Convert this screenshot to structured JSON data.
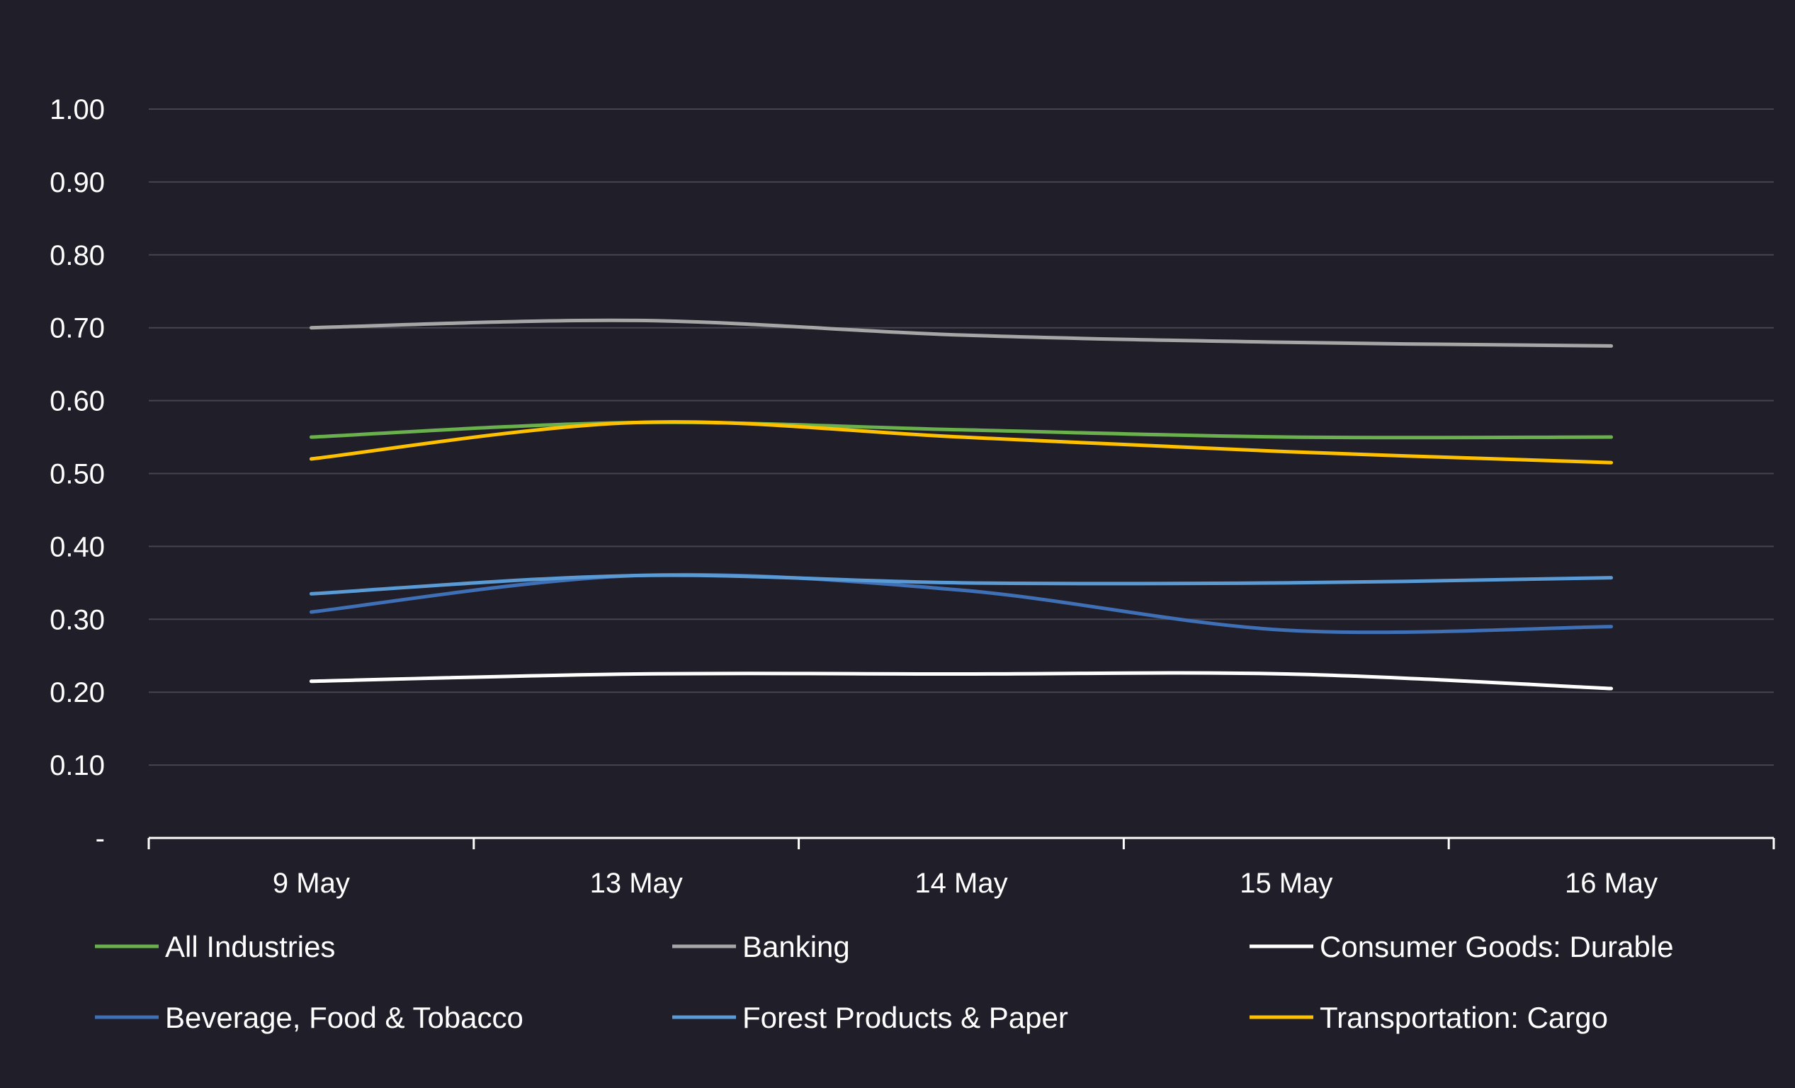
{
  "chart_data": {
    "type": "line",
    "title": "",
    "xlabel": "",
    "ylabel": "",
    "categories": [
      "9 May",
      "13 May",
      "14 May",
      "15 May",
      "16 May"
    ],
    "ylim": [
      0,
      1.0
    ],
    "y_ticks": [
      {
        "value": 0.0,
        "label": "-"
      },
      {
        "value": 0.1,
        "label": "0.10"
      },
      {
        "value": 0.2,
        "label": "0.20"
      },
      {
        "value": 0.3,
        "label": "0.30"
      },
      {
        "value": 0.4,
        "label": "0.40"
      },
      {
        "value": 0.5,
        "label": "0.50"
      },
      {
        "value": 0.6,
        "label": "0.60"
      },
      {
        "value": 0.7,
        "label": "0.70"
      },
      {
        "value": 0.8,
        "label": "0.80"
      },
      {
        "value": 0.9,
        "label": "0.90"
      },
      {
        "value": 1.0,
        "label": "1.00"
      }
    ],
    "grid": true,
    "legend_position": "bottom",
    "series": [
      {
        "name": "All Industries",
        "color": "#6ab04c",
        "values": [
          0.55,
          0.57,
          0.56,
          0.55,
          0.55
        ]
      },
      {
        "name": "Banking",
        "color": "#a6a6a6",
        "values": [
          0.7,
          0.71,
          0.69,
          0.68,
          0.675
        ]
      },
      {
        "name": "Consumer Goods: Durable",
        "color": "#ffffff",
        "values": [
          0.215,
          0.225,
          0.225,
          0.225,
          0.205
        ]
      },
      {
        "name": "Beverage, Food & Tobacco",
        "color": "#3f6fb5",
        "values": [
          0.31,
          0.36,
          0.34,
          0.285,
          0.29
        ]
      },
      {
        "name": "Forest Products & Paper",
        "color": "#5b9bd5",
        "values": [
          0.335,
          0.36,
          0.35,
          0.35,
          0.357
        ]
      },
      {
        "name": "Transportation: Cargo",
        "color": "#ffc000",
        "values": [
          0.52,
          0.57,
          0.55,
          0.53,
          0.515
        ]
      }
    ]
  },
  "colors": {
    "background": "#1f1e29",
    "grid": "#46454f",
    "axis": "#ffffff",
    "text": "#ffffff"
  }
}
